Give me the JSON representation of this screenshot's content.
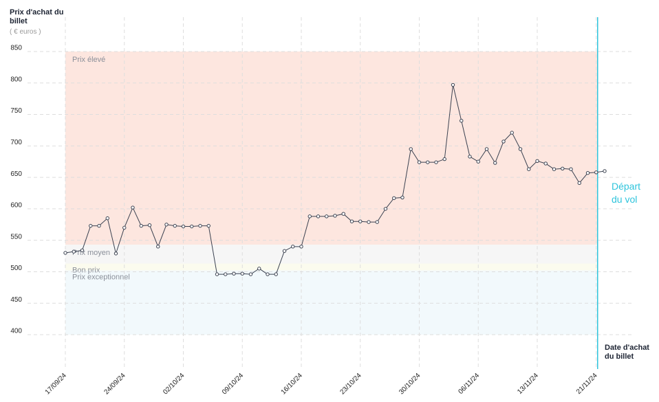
{
  "chart_data": {
    "type": "line",
    "y_label": "Prix d'achat du billet",
    "y_unit": "( € euros )",
    "x_label": "Date d'achat du billet",
    "annotation": "Départ du vol",
    "categories": [
      "17/09/24",
      null,
      null,
      null,
      null,
      null,
      null,
      "24/09/24",
      null,
      null,
      null,
      null,
      null,
      null,
      "02/10/24",
      null,
      null,
      null,
      null,
      null,
      null,
      "09/10/24",
      null,
      null,
      null,
      null,
      null,
      null,
      "16/10/24",
      null,
      null,
      null,
      null,
      null,
      null,
      "23/10/24",
      null,
      null,
      null,
      null,
      null,
      null,
      "30/10/24",
      null,
      null,
      null,
      null,
      null,
      null,
      "06/11/24",
      null,
      null,
      null,
      null,
      null,
      null,
      "13/11/24",
      null,
      null,
      null,
      null,
      null,
      null,
      "21/11/24",
      null
    ],
    "series": [
      {
        "name": "Prix",
        "color": "#3a4150",
        "values": [
          530,
          532,
          534,
          573,
          573,
          585,
          529,
          570,
          602,
          573,
          574,
          540,
          575,
          573,
          572,
          572,
          573,
          573,
          496,
          496,
          497,
          497,
          496,
          505,
          496,
          496,
          533,
          540,
          540,
          588,
          588,
          588,
          589,
          592,
          580,
          580,
          579,
          579,
          600,
          617,
          618,
          695,
          674,
          674,
          674,
          679,
          797,
          740,
          683,
          675,
          695,
          673,
          707,
          721,
          695,
          663,
          676,
          672,
          663,
          664,
          663,
          641,
          657,
          658,
          660
        ]
      }
    ],
    "zones": [
      {
        "label": "Prix élevé",
        "from": 543,
        "to": 850,
        "color": "#fde6df"
      },
      {
        "label": "Prix moyen",
        "from": 513,
        "to": 543,
        "color": "#f6f6f6"
      },
      {
        "label": "Bon prix",
        "from": 502,
        "to": 513,
        "color": "#fbfbee"
      },
      {
        "label": "Prix exceptionnel",
        "from": 400,
        "to": 502,
        "color": "#f2f9fc"
      }
    ],
    "ylim": [
      400,
      850
    ],
    "yticks": [
      400,
      450,
      500,
      550,
      600,
      650,
      700,
      750,
      800,
      850
    ],
    "grid": true
  }
}
